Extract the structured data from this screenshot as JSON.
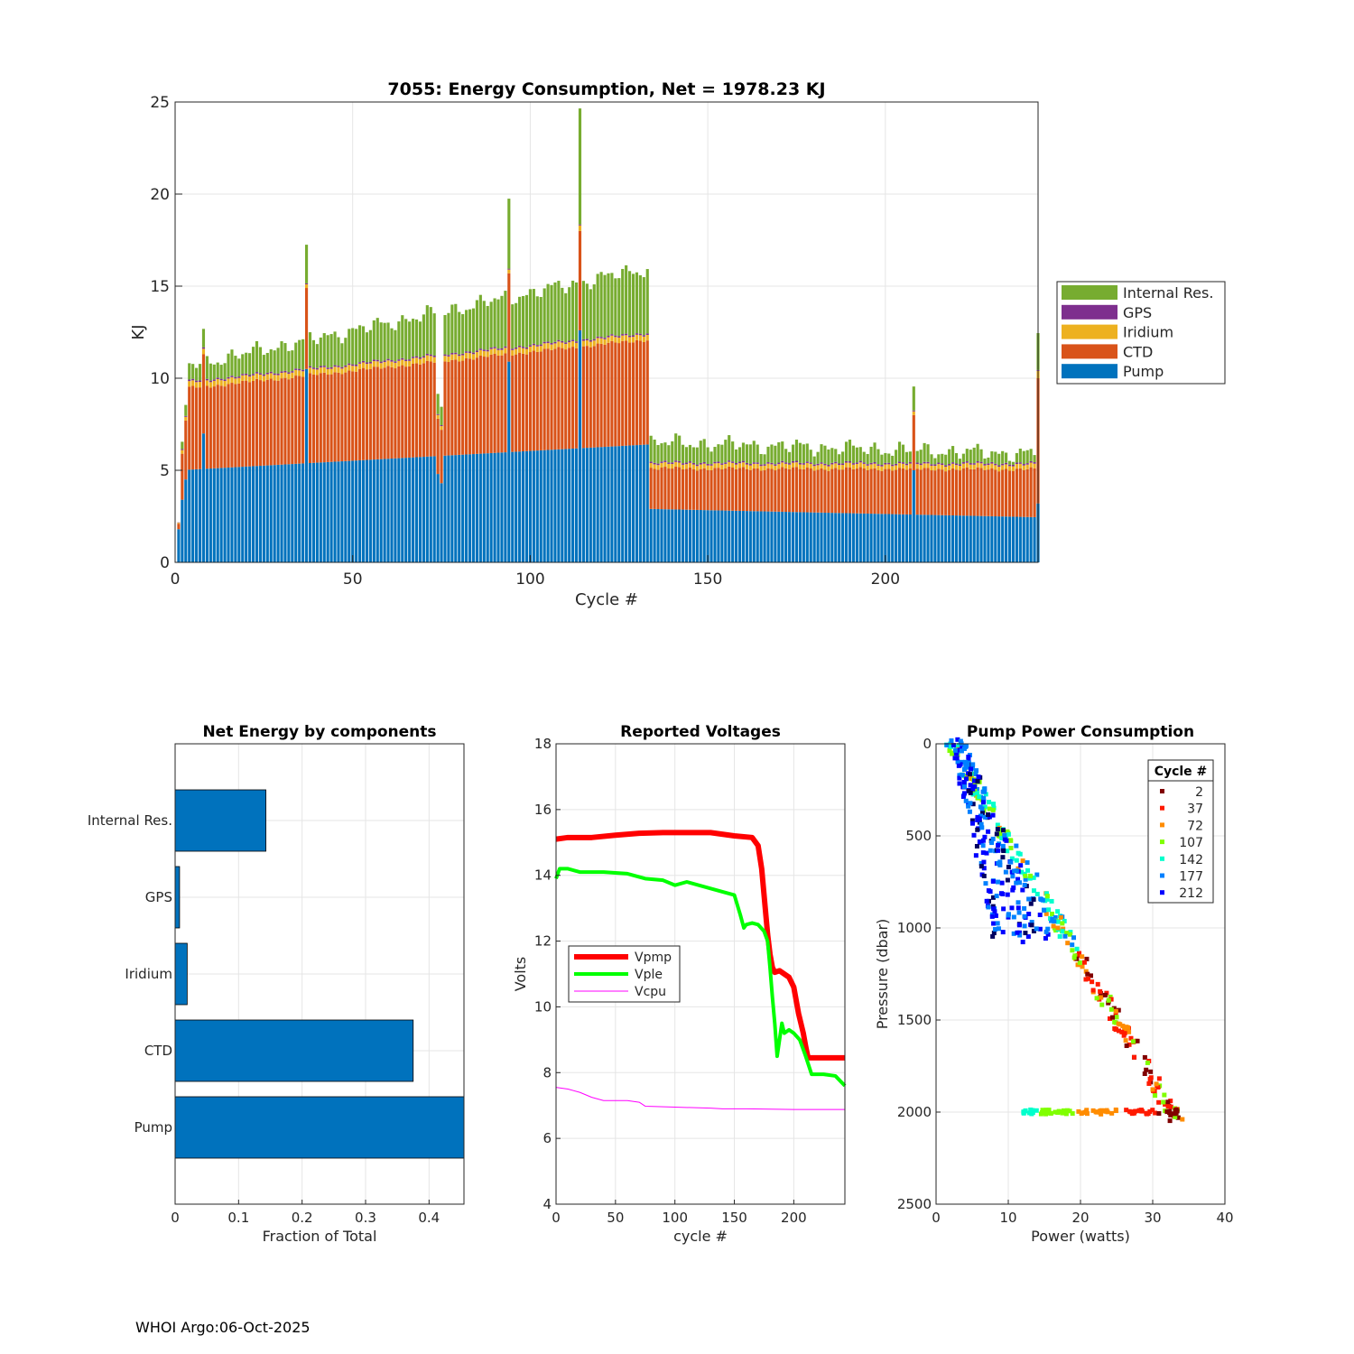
{
  "footer": "WHOI Argo:06-Oct-2025",
  "chart_data": [
    {
      "type": "bar",
      "stacked": true,
      "title": "7055: Energy Consumption,  Net = 1978.23 KJ",
      "xlabel": "Cycle #",
      "ylabel": "KJ",
      "xlim": [
        0,
        243
      ],
      "ylim": [
        0,
        25
      ],
      "xticks": [
        0,
        50,
        100,
        150,
        200
      ],
      "yticks": [
        0,
        5,
        10,
        15,
        20,
        25
      ],
      "grid": true,
      "legend_position": "outside-right",
      "series": [
        {
          "name": "Pump",
          "color": "#0072BD"
        },
        {
          "name": "CTD",
          "color": "#D95319"
        },
        {
          "name": "Iridium",
          "color": "#EDB120"
        },
        {
          "name": "GPS",
          "color": "#7E2F8E"
        },
        {
          "name": "Internal Res.",
          "color": "#77AC30"
        }
      ],
      "legend_order": [
        "Internal Res.",
        "GPS",
        "Iridium",
        "CTD",
        "Pump"
      ],
      "cycle_segments": [
        {
          "from": 1,
          "to": 133,
          "pump": [
            5.0,
            6.4
          ],
          "ctd": [
            4.4,
            5.7
          ],
          "iridium": 0.3,
          "gps": 0.08,
          "internal": [
            0.8,
            3.5
          ]
        },
        {
          "from": 134,
          "to": 243,
          "pump": [
            2.9,
            2.45
          ],
          "ctd": [
            2.2,
            2.6
          ],
          "iridium": 0.25,
          "gps": 0.08,
          "internal": [
            1.1,
            0.5
          ]
        }
      ],
      "cycle_overrides": [
        {
          "cycle": 1,
          "pump": 1.8,
          "ctd": 0.3,
          "iridium": 0.05,
          "gps": 0.02,
          "internal": 0.0
        },
        {
          "cycle": 2,
          "pump": 3.4,
          "ctd": 2.5,
          "iridium": 0.2,
          "gps": 0.05,
          "internal": 0.4
        },
        {
          "cycle": 3,
          "pump": 4.5,
          "ctd": 3.2,
          "iridium": 0.2,
          "gps": 0.05,
          "internal": 0.6
        },
        {
          "cycle": 8,
          "pump": 7.0,
          "ctd": 4.3,
          "iridium": 0.3,
          "gps": 0.08,
          "internal": 1.0
        },
        {
          "cycle": 37,
          "pump": 10.5,
          "ctd": 4.4,
          "iridium": 0.2,
          "gps": 0.05,
          "internal": 2.1
        },
        {
          "cycle": 74,
          "pump": 4.8,
          "ctd": 3.0,
          "iridium": 0.2,
          "gps": 0.05,
          "internal": 1.1
        },
        {
          "cycle": 75,
          "pump": 4.3,
          "ctd": 2.9,
          "iridium": 0.2,
          "gps": 0.05,
          "internal": 1.0
        },
        {
          "cycle": 94,
          "pump": 10.9,
          "ctd": 4.8,
          "iridium": 0.2,
          "gps": 0.05,
          "internal": 3.8
        },
        {
          "cycle": 114,
          "pump": 12.6,
          "ctd": 5.4,
          "iridium": 0.3,
          "gps": 0.05,
          "internal": 6.3
        },
        {
          "cycle": 208,
          "pump": 5.0,
          "ctd": 3.0,
          "iridium": 0.2,
          "gps": 0.05,
          "internal": 1.3
        },
        {
          "cycle": 243,
          "pump": 3.2,
          "ctd": 6.8,
          "iridium": 0.4,
          "gps": 0.05,
          "internal": 2.0
        }
      ]
    },
    {
      "type": "bar",
      "orientation": "horizontal",
      "title": "Net Energy by components",
      "xlabel": "Fraction of Total",
      "ylabel": "",
      "categories": [
        "Pump",
        "CTD",
        "Iridium",
        "GPS",
        "Internal Res."
      ],
      "values": [
        0.455,
        0.375,
        0.019,
        0.007,
        0.143
      ],
      "xlim": [
        0,
        0.455
      ],
      "xticks": [
        0,
        0.1,
        0.2,
        0.3,
        0.4
      ],
      "color": "#0072BD",
      "grid": true
    },
    {
      "type": "line",
      "title": "Reported Voltages",
      "xlabel": "cycle #",
      "ylabel": "Volts",
      "xlim": [
        0,
        243
      ],
      "ylim": [
        4,
        18
      ],
      "xticks": [
        0,
        50,
        100,
        150,
        200
      ],
      "yticks": [
        4,
        6,
        8,
        10,
        12,
        14,
        16,
        18
      ],
      "grid": true,
      "legend_position": "middle-left",
      "series": [
        {
          "name": "Vpmp",
          "color": "#FF0000",
          "x": [
            0,
            10,
            30,
            50,
            70,
            90,
            110,
            130,
            150,
            165,
            170,
            173,
            176,
            178,
            180,
            182,
            184,
            188,
            192,
            196,
            200,
            204,
            208,
            210,
            212,
            243
          ],
          "y": [
            15.1,
            15.15,
            15.15,
            15.22,
            15.28,
            15.3,
            15.3,
            15.3,
            15.2,
            15.15,
            14.9,
            14.2,
            13.0,
            12.2,
            11.6,
            11.2,
            11.05,
            11.1,
            11.0,
            10.9,
            10.6,
            9.8,
            9.2,
            8.8,
            8.45,
            8.45
          ]
        },
        {
          "name": "Vple",
          "color": "#00FF00",
          "x": [
            0,
            3,
            10,
            20,
            40,
            60,
            75,
            90,
            100,
            110,
            130,
            140,
            150,
            155,
            158,
            160,
            165,
            170,
            175,
            178,
            180,
            182,
            184,
            186,
            188,
            190,
            192,
            196,
            200,
            205,
            210,
            215,
            225,
            235,
            243
          ],
          "y": [
            13.9,
            14.2,
            14.2,
            14.1,
            14.1,
            14.05,
            13.9,
            13.85,
            13.7,
            13.8,
            13.6,
            13.5,
            13.4,
            12.8,
            12.4,
            12.5,
            12.55,
            12.5,
            12.3,
            12.0,
            11.2,
            10.3,
            9.5,
            8.5,
            9.0,
            9.5,
            9.2,
            9.3,
            9.2,
            9.0,
            8.5,
            7.95,
            7.95,
            7.9,
            7.6
          ]
        },
        {
          "name": "Vcpu",
          "color": "#FF00FF",
          "x": [
            0,
            10,
            20,
            30,
            40,
            60,
            70,
            75,
            100,
            130,
            140,
            160,
            200,
            243
          ],
          "y": [
            7.55,
            7.5,
            7.4,
            7.25,
            7.15,
            7.15,
            7.1,
            6.98,
            6.95,
            6.92,
            6.9,
            6.9,
            6.88,
            6.88
          ]
        }
      ]
    },
    {
      "type": "scatter",
      "title": "Pump Power Consumption",
      "xlabel": "Power (watts)",
      "ylabel": "Pressure (dbar)",
      "xlim": [
        0,
        40
      ],
      "ylim": [
        2500,
        0
      ],
      "xticks": [
        0,
        10,
        20,
        30,
        40
      ],
      "yticks": [
        0,
        500,
        1000,
        1500,
        2000,
        2500
      ],
      "grid": true,
      "legend_title": "Cycle #",
      "legend_position": "top-right",
      "series": [
        {
          "name": "2",
          "color": "#800000"
        },
        {
          "name": "37",
          "color": "#FF1A00"
        },
        {
          "name": "72",
          "color": "#FF8C00"
        },
        {
          "name": "107",
          "color": "#80FF00"
        },
        {
          "name": "142",
          "color": "#00FFCC"
        },
        {
          "name": "177",
          "color": "#0080FF"
        },
        {
          "name": "212",
          "color": "#0000FF"
        }
      ],
      "trend_lines": [
        {
          "name": "upper-ascent",
          "from": [
            2.0,
            0
          ],
          "to": [
            33.5,
            2050
          ]
        },
        {
          "name": "lower-ascent",
          "from": [
            2.0,
            0
          ],
          "to": [
            8.0,
            1050
          ]
        },
        {
          "name": "deep-horizontal",
          "from": [
            12.0,
            2000
          ],
          "to": [
            33.5,
            2000
          ]
        }
      ]
    }
  ]
}
